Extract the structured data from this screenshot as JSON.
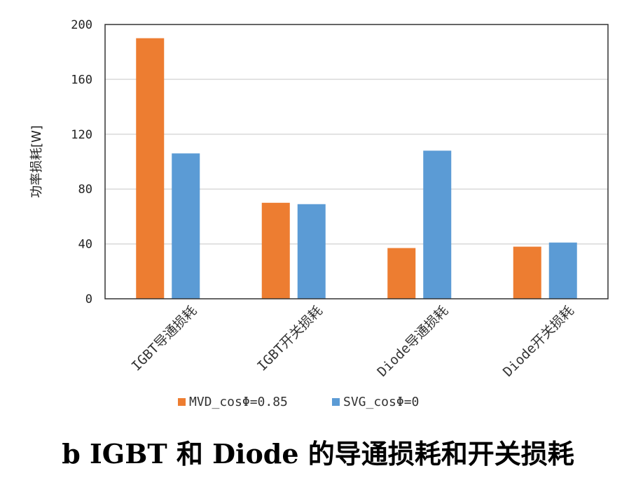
{
  "chart_data": {
    "type": "bar",
    "categories": [
      "IGBT导通损耗",
      "IGBT开关损耗",
      "Diode导通损耗",
      "Diode开关损耗"
    ],
    "series": [
      {
        "name": "MVD_cosΦ=0.85",
        "values": [
          190,
          70,
          37,
          38
        ],
        "color": "#ED7D31"
      },
      {
        "name": "SVG_cosΦ=0",
        "values": [
          106,
          69,
          108,
          41
        ],
        "color": "#5B9BD5"
      }
    ],
    "ylabel": "功率损耗[W]",
    "ylim": [
      0,
      200
    ],
    "yticks": [
      0,
      40,
      80,
      120,
      160,
      200
    ],
    "grid": true,
    "legend_position": "bottom"
  },
  "caption": "b IGBT 和 Diode 的导通损耗和开关损耗"
}
